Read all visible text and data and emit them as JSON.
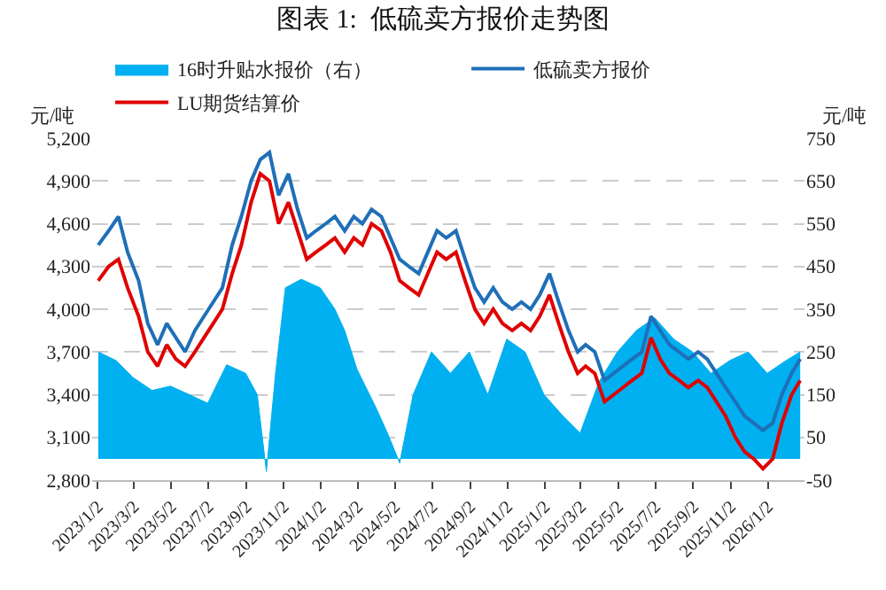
{
  "chart_data": {
    "type": "line",
    "title": "图表 1:  低硫卖方报价走势图",
    "ylabel": "元/吨",
    "y2label": "元/吨",
    "xlim": [
      "2022-12-24",
      "2026-03-03"
    ],
    "xticks": [
      {
        "value": "2023-01-02",
        "label": "2023/1/2"
      },
      {
        "value": "2023-03-02",
        "label": "2023/3/2"
      },
      {
        "value": "2023-05-02",
        "label": "2023/5/2"
      },
      {
        "value": "2023-07-02",
        "label": "2023/7/2"
      },
      {
        "value": "2023-09-02",
        "label": "2023/9/2"
      },
      {
        "value": "2023-11-02",
        "label": "2023/11/2"
      },
      {
        "value": "2024-01-02",
        "label": "2024/1/2"
      },
      {
        "value": "2024-03-02",
        "label": "2024/3/2"
      },
      {
        "value": "2024-05-02",
        "label": "2024/5/2"
      },
      {
        "value": "2024-07-02",
        "label": "2024/7/2"
      },
      {
        "value": "2024-09-02",
        "label": "2024/9/2"
      },
      {
        "value": "2024-11-02",
        "label": "2024/11/2"
      },
      {
        "value": "2025-01-02",
        "label": "2025/1/2"
      },
      {
        "value": "2025-03-02",
        "label": "2025/3/2"
      },
      {
        "value": "2025-05-02",
        "label": "2025/5/2"
      },
      {
        "value": "2025-07-02",
        "label": "2025/7/2"
      },
      {
        "value": "2025-09-02",
        "label": "2025/9/2"
      },
      {
        "value": "2025-11-02",
        "label": "2025/11/2"
      },
      {
        "value": "2026-01-02",
        "label": "2026/1/2"
      }
    ],
    "ylim": [
      2800,
      5200
    ],
    "yticks": [
      {
        "value": 2800,
        "label": "2,800"
      },
      {
        "value": 3100,
        "label": "3,100"
      },
      {
        "value": 3400,
        "label": "3,400"
      },
      {
        "value": 3700,
        "label": "3,700"
      },
      {
        "value": 4000,
        "label": "4,000"
      },
      {
        "value": 4300,
        "label": "4,300"
      },
      {
        "value": 4600,
        "label": "4,600"
      },
      {
        "value": 4900,
        "label": "4,900"
      },
      {
        "value": 5200,
        "label": "5,200"
      }
    ],
    "y2lim": [
      -50,
      750
    ],
    "y2ticks": [
      -50,
      50,
      150,
      250,
      350,
      450,
      550,
      650,
      750
    ],
    "grid": "y",
    "legend": "top",
    "line_style": "solid",
    "marker": "none",
    "series": [
      {
        "name": "16时升贴水报价（右）",
        "type": "area",
        "axis": "y2",
        "color": "#00b0f0",
        "x": [
          "2023-01-03",
          "2023-02-01",
          "2023-03-01",
          "2023-04-01",
          "2023-05-01",
          "2023-06-01",
          "2023-07-01",
          "2023-08-01",
          "2023-09-01",
          "2023-09-20",
          "2023-10-05",
          "2023-10-20",
          "2023-11-05",
          "2023-12-01",
          "2024-01-01",
          "2024-01-25",
          "2024-02-10",
          "2024-03-01",
          "2024-04-01",
          "2024-04-20",
          "2024-05-10",
          "2024-06-01",
          "2024-07-01",
          "2024-08-01",
          "2024-09-01",
          "2024-10-01",
          "2024-11-01",
          "2024-12-01",
          "2025-01-01",
          "2025-02-01",
          "2025-03-01",
          "2025-04-01",
          "2025-05-01",
          "2025-06-01",
          "2025-07-01",
          "2025-08-01",
          "2025-09-01",
          "2025-10-01",
          "2025-11-01",
          "2025-12-01",
          "2026-01-01",
          "2026-02-01",
          "2026-02-24"
        ],
        "values": [
          250,
          230,
          190,
          160,
          170,
          150,
          130,
          220,
          200,
          150,
          -30,
          200,
          400,
          420,
          400,
          350,
          300,
          210,
          120,
          60,
          -10,
          150,
          250,
          200,
          250,
          150,
          280,
          250,
          150,
          100,
          60,
          180,
          250,
          300,
          330,
          280,
          250,
          200,
          230,
          250,
          200,
          230,
          250
        ]
      },
      {
        "name": "低硫卖方报价",
        "color": "#1f6fb8",
        "x": [
          "2023-01-03",
          "2023-01-20",
          "2023-02-05",
          "2023-02-20",
          "2023-03-10",
          "2023-03-25",
          "2023-04-10",
          "2023-04-25",
          "2023-05-10",
          "2023-05-25",
          "2023-06-10",
          "2023-06-25",
          "2023-07-10",
          "2023-07-25",
          "2023-08-10",
          "2023-08-25",
          "2023-09-10",
          "2023-09-25",
          "2023-10-10",
          "2023-10-25",
          "2023-11-10",
          "2023-11-25",
          "2023-12-10",
          "2023-12-25",
          "2024-01-10",
          "2024-01-25",
          "2024-02-10",
          "2024-02-25",
          "2024-03-10",
          "2024-03-25",
          "2024-04-10",
          "2024-04-25",
          "2024-05-10",
          "2024-05-25",
          "2024-06-10",
          "2024-06-25",
          "2024-07-10",
          "2024-07-25",
          "2024-08-10",
          "2024-08-25",
          "2024-09-10",
          "2024-09-25",
          "2024-10-10",
          "2024-10-25",
          "2024-11-10",
          "2024-11-25",
          "2024-12-10",
          "2024-12-25",
          "2025-01-10",
          "2025-01-25",
          "2025-02-10",
          "2025-02-25",
          "2025-03-10",
          "2025-03-25",
          "2025-04-10",
          "2025-04-25",
          "2025-05-10",
          "2025-05-25",
          "2025-06-10",
          "2025-06-25",
          "2025-07-10",
          "2025-07-25",
          "2025-08-10",
          "2025-08-25",
          "2025-09-10",
          "2025-09-25",
          "2025-10-10",
          "2025-10-25",
          "2025-11-10",
          "2025-11-25",
          "2025-12-10",
          "2025-12-25",
          "2026-01-10",
          "2026-01-25",
          "2026-02-10",
          "2026-02-24"
        ],
        "values": [
          4450,
          4550,
          4650,
          4400,
          4200,
          3900,
          3750,
          3900,
          3800,
          3700,
          3850,
          3950,
          4050,
          4150,
          4450,
          4650,
          4900,
          5050,
          5100,
          4800,
          4950,
          4700,
          4500,
          4550,
          4600,
          4650,
          4550,
          4650,
          4600,
          4700,
          4650,
          4500,
          4350,
          4300,
          4250,
          4400,
          4550,
          4500,
          4550,
          4350,
          4150,
          4050,
          4150,
          4050,
          4000,
          4050,
          4000,
          4100,
          4250,
          4050,
          3850,
          3700,
          3750,
          3700,
          3500,
          3550,
          3600,
          3650,
          3700,
          3950,
          3850,
          3750,
          3700,
          3650,
          3700,
          3650,
          3550,
          3450,
          3350,
          3250,
          3200,
          3150,
          3200,
          3400,
          3550,
          3650
        ]
      },
      {
        "name": "LU期货结算价",
        "color": "#e00000",
        "x": [
          "2023-01-03",
          "2023-01-20",
          "2023-02-05",
          "2023-02-20",
          "2023-03-10",
          "2023-03-25",
          "2023-04-10",
          "2023-04-25",
          "2023-05-10",
          "2023-05-25",
          "2023-06-10",
          "2023-06-25",
          "2023-07-10",
          "2023-07-25",
          "2023-08-10",
          "2023-08-25",
          "2023-09-10",
          "2023-09-25",
          "2023-10-10",
          "2023-10-25",
          "2023-11-10",
          "2023-11-25",
          "2023-12-10",
          "2023-12-25",
          "2024-01-10",
          "2024-01-25",
          "2024-02-10",
          "2024-02-25",
          "2024-03-10",
          "2024-03-25",
          "2024-04-10",
          "2024-04-25",
          "2024-05-10",
          "2024-05-25",
          "2024-06-10",
          "2024-06-25",
          "2024-07-10",
          "2024-07-25",
          "2024-08-10",
          "2024-08-25",
          "2024-09-10",
          "2024-09-25",
          "2024-10-10",
          "2024-10-25",
          "2024-11-10",
          "2024-11-25",
          "2024-12-10",
          "2024-12-25",
          "2025-01-10",
          "2025-01-25",
          "2025-02-10",
          "2025-02-25",
          "2025-03-10",
          "2025-03-25",
          "2025-04-10",
          "2025-04-25",
          "2025-05-10",
          "2025-05-25",
          "2025-06-10",
          "2025-06-25",
          "2025-07-10",
          "2025-07-25",
          "2025-08-10",
          "2025-08-25",
          "2025-09-10",
          "2025-09-25",
          "2025-10-10",
          "2025-10-25",
          "2025-11-10",
          "2025-11-25",
          "2025-12-10",
          "2025-12-25",
          "2026-01-10",
          "2026-01-25",
          "2026-02-10",
          "2026-02-24"
        ],
        "values": [
          4200,
          4300,
          4350,
          4150,
          3950,
          3700,
          3600,
          3750,
          3650,
          3600,
          3700,
          3800,
          3900,
          4000,
          4250,
          4450,
          4750,
          4950,
          4900,
          4600,
          4750,
          4550,
          4350,
          4400,
          4450,
          4500,
          4400,
          4500,
          4450,
          4600,
          4550,
          4400,
          4200,
          4150,
          4100,
          4250,
          4400,
          4350,
          4400,
          4200,
          4000,
          3900,
          4000,
          3900,
          3850,
          3900,
          3850,
          3950,
          4100,
          3900,
          3700,
          3550,
          3600,
          3550,
          3350,
          3400,
          3450,
          3500,
          3550,
          3800,
          3650,
          3550,
          3500,
          3450,
          3500,
          3450,
          3350,
          3250,
          3100,
          3000,
          2950,
          2880,
          2950,
          3200,
          3400,
          3500
        ]
      }
    ]
  }
}
